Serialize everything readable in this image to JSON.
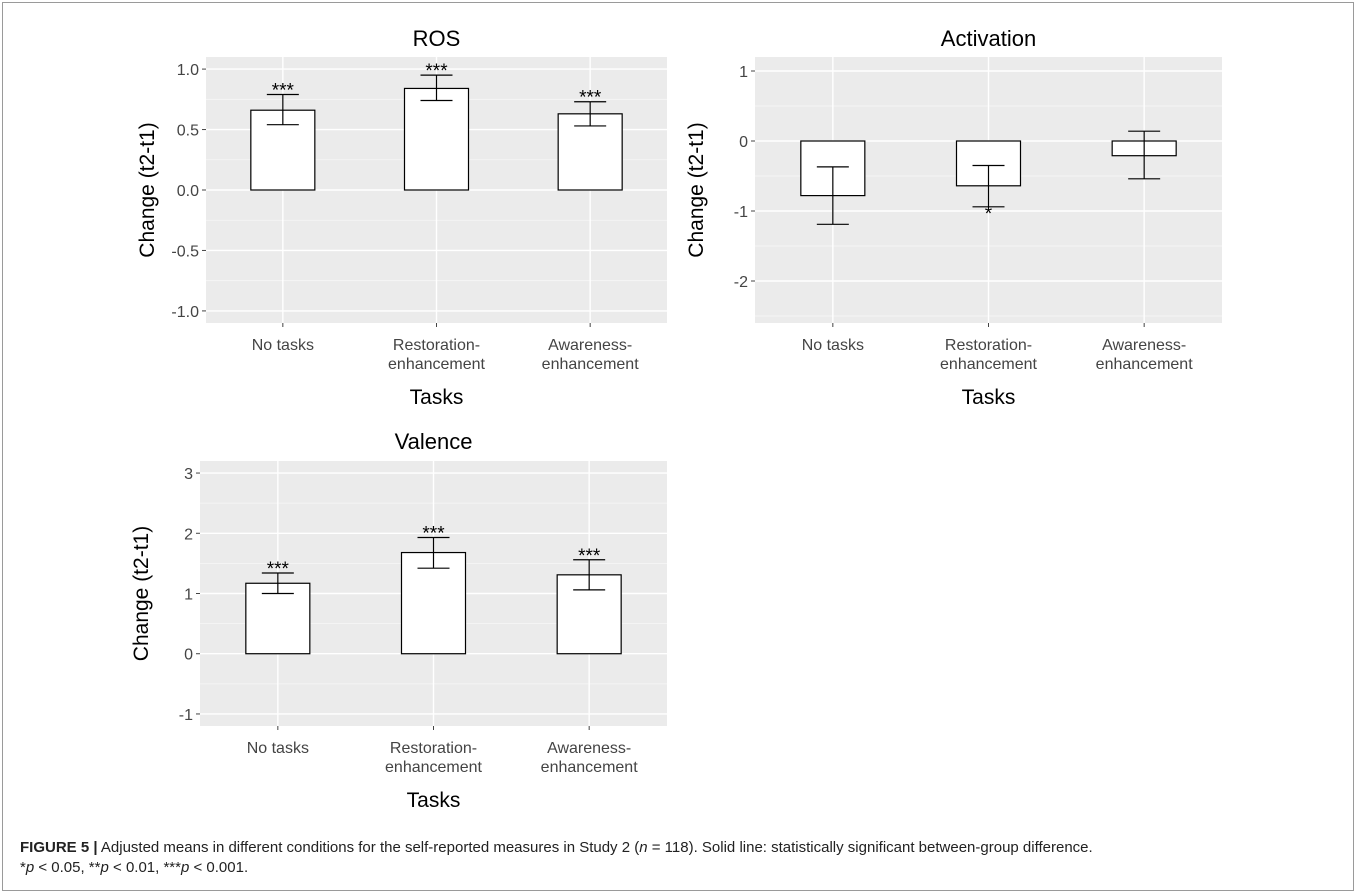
{
  "chart_data": [
    {
      "type": "bar",
      "title": "ROS",
      "xlabel": "Tasks",
      "ylabel": "Change (t2-t1)",
      "categories": [
        [
          "No tasks"
        ],
        [
          "Restoration-",
          "enhancement"
        ],
        [
          "Awareness-",
          "enhancement"
        ]
      ],
      "values": [
        0.66,
        0.84,
        0.63
      ],
      "error_low": [
        0.54,
        0.74,
        0.53
      ],
      "error_high": [
        0.79,
        0.95,
        0.73
      ],
      "annotations": [
        "***",
        "***",
        "***"
      ],
      "ylim": [
        -1.1,
        1.1
      ],
      "yticks": [
        -1.0,
        -0.5,
        0.0,
        0.5,
        1.0
      ],
      "ytick_labels": [
        "-1.0",
        "-0.5",
        "0.0",
        "0.5",
        "1.0"
      ],
      "grid": true
    },
    {
      "type": "bar",
      "title": "Activation",
      "xlabel": "Tasks",
      "ylabel": "Change (t2-t1)",
      "categories": [
        [
          "No tasks"
        ],
        [
          "Restoration-",
          "enhancement"
        ],
        [
          "Awareness-",
          "enhancement"
        ]
      ],
      "values": [
        -0.78,
        -0.64,
        -0.21
      ],
      "error_low": [
        -1.19,
        -0.94,
        -0.54
      ],
      "error_high": [
        -0.37,
        -0.35,
        0.14
      ],
      "annotations": [
        "",
        "*",
        ""
      ],
      "ylim": [
        -2.6,
        1.2
      ],
      "yticks": [
        -2,
        -1,
        0,
        1
      ],
      "ytick_labels": [
        "-2",
        "-1",
        "0",
        "1"
      ],
      "grid": true
    },
    {
      "type": "bar",
      "title": "Valence",
      "xlabel": "Tasks",
      "ylabel": "Change (t2-t1)",
      "categories": [
        [
          "No tasks"
        ],
        [
          "Restoration-",
          "enhancement"
        ],
        [
          "Awareness-",
          "enhancement"
        ]
      ],
      "values": [
        1.17,
        1.68,
        1.31
      ],
      "error_low": [
        1.0,
        1.42,
        1.06
      ],
      "error_high": [
        1.34,
        1.93,
        1.56
      ],
      "annotations": [
        "***",
        "***",
        "***"
      ],
      "ylim": [
        -1.2,
        3.2
      ],
      "yticks": [
        -1,
        0,
        1,
        2,
        3
      ],
      "ytick_labels": [
        "-1",
        "0",
        "1",
        "2",
        "3"
      ],
      "grid": true
    }
  ],
  "caption": {
    "label": "FIGURE 5 |",
    "text": " Adjusted means in different conditions for the self-reported measures in Study 2 (",
    "n_symbol": "n",
    "n_value": " = 118). Solid line: statistically significant between-group difference.",
    "p1_prefix": "*",
    "p1_sym": "p",
    "p1_rest": " < 0.05, **",
    "p2_sym": "p",
    "p2_rest": " < 0.01, ***",
    "p3_sym": "p",
    "p3_rest": " < 0.001."
  }
}
